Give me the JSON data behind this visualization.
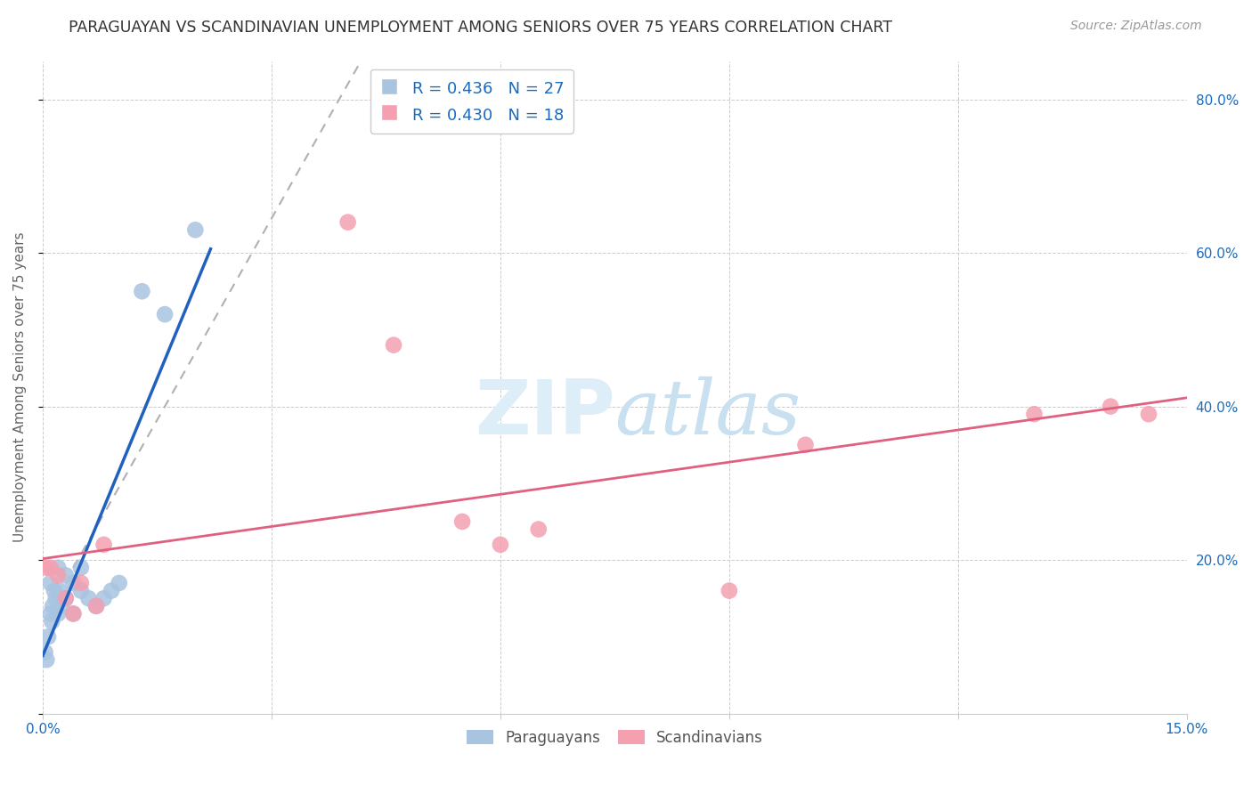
{
  "title": "PARAGUAYAN VS SCANDINAVIAN UNEMPLOYMENT AMONG SENIORS OVER 75 YEARS CORRELATION CHART",
  "source": "Source: ZipAtlas.com",
  "ylabel": "Unemployment Among Seniors over 75 years",
  "xlim": [
    0.0,
    0.15
  ],
  "ylim": [
    0.0,
    0.85
  ],
  "xtick_positions": [
    0.0,
    0.03,
    0.06,
    0.09,
    0.12,
    0.15
  ],
  "xticklabels": [
    "0.0%",
    "",
    "",
    "",
    "",
    "15.0%"
  ],
  "ytick_positions": [
    0.0,
    0.2,
    0.4,
    0.6,
    0.8
  ],
  "yticklabels": [
    "",
    "20.0%",
    "40.0%",
    "60.0%",
    "80.0%"
  ],
  "par_x": [
    0.0003,
    0.0005,
    0.0007,
    0.001,
    0.001,
    0.0012,
    0.0013,
    0.0015,
    0.0017,
    0.002,
    0.002,
    0.0022,
    0.0025,
    0.003,
    0.003,
    0.004,
    0.004,
    0.005,
    0.005,
    0.006,
    0.007,
    0.008,
    0.009,
    0.01,
    0.013,
    0.016,
    0.02
  ],
  "par_y": [
    0.08,
    0.07,
    0.1,
    0.13,
    0.17,
    0.12,
    0.14,
    0.16,
    0.15,
    0.13,
    0.19,
    0.16,
    0.14,
    0.18,
    0.15,
    0.17,
    0.13,
    0.16,
    0.19,
    0.15,
    0.14,
    0.15,
    0.16,
    0.17,
    0.55,
    0.52,
    0.63
  ],
  "sca_x": [
    0.0005,
    0.001,
    0.002,
    0.003,
    0.004,
    0.005,
    0.007,
    0.008,
    0.04,
    0.046,
    0.055,
    0.06,
    0.065,
    0.09,
    0.1,
    0.13,
    0.14,
    0.145
  ],
  "sca_y": [
    0.19,
    0.19,
    0.18,
    0.15,
    0.13,
    0.17,
    0.14,
    0.22,
    0.64,
    0.48,
    0.25,
    0.22,
    0.24,
    0.16,
    0.35,
    0.39,
    0.4,
    0.39
  ],
  "par_color": "#a8c4e0",
  "sca_color": "#f4a0b0",
  "par_line_color": "#2060c0",
  "sca_line_color": "#e06080",
  "dash_color": "#b0b0b0",
  "par_r": 0.436,
  "par_n": 27,
  "sca_r": 0.43,
  "sca_n": 18,
  "legend_color": "#1a6bbf",
  "bg_color": "#ffffff",
  "grid_color": "#cccccc",
  "title_fontsize": 12.5,
  "source_fontsize": 10,
  "tick_fontsize": 11,
  "ylabel_fontsize": 11
}
